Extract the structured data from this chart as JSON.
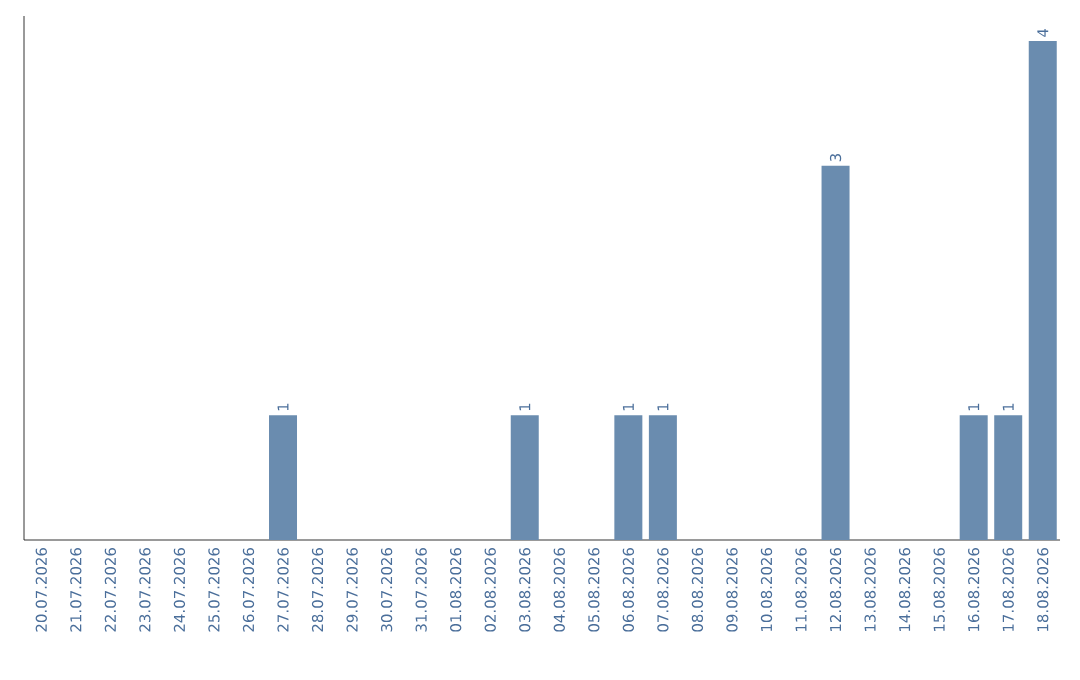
{
  "chart_data": {
    "type": "bar",
    "categories": [
      "20.07.2026",
      "21.07.2026",
      "22.07.2026",
      "23.07.2026",
      "24.07.2026",
      "25.07.2026",
      "26.07.2026",
      "27.07.2026",
      "28.07.2026",
      "29.07.2026",
      "30.07.2026",
      "31.07.2026",
      "01.08.2026",
      "02.08.2026",
      "03.08.2026",
      "04.08.2026",
      "05.08.2026",
      "06.08.2026",
      "07.08.2026",
      "08.08.2026",
      "09.08.2026",
      "10.08.2026",
      "11.08.2026",
      "12.08.2026",
      "13.08.2026",
      "14.08.2026",
      "15.08.2026",
      "16.08.2026",
      "17.08.2026",
      "18.08.2026"
    ],
    "values": [
      0,
      0,
      0,
      0,
      0,
      0,
      0,
      1,
      0,
      0,
      0,
      0,
      0,
      0,
      1,
      0,
      0,
      1,
      1,
      0,
      0,
      0,
      0,
      3,
      0,
      0,
      0,
      1,
      1,
      4
    ],
    "value_labels": [
      null,
      null,
      null,
      null,
      null,
      null,
      null,
      "1",
      null,
      null,
      null,
      null,
      null,
      null,
      "1",
      null,
      null,
      "1",
      "1",
      null,
      null,
      null,
      null,
      "3",
      null,
      null,
      null,
      "1",
      "1",
      "4"
    ],
    "color": "#6a8caf",
    "ylim": [
      0,
      4.2
    ],
    "tick_labels": "x",
    "grid": false
  }
}
